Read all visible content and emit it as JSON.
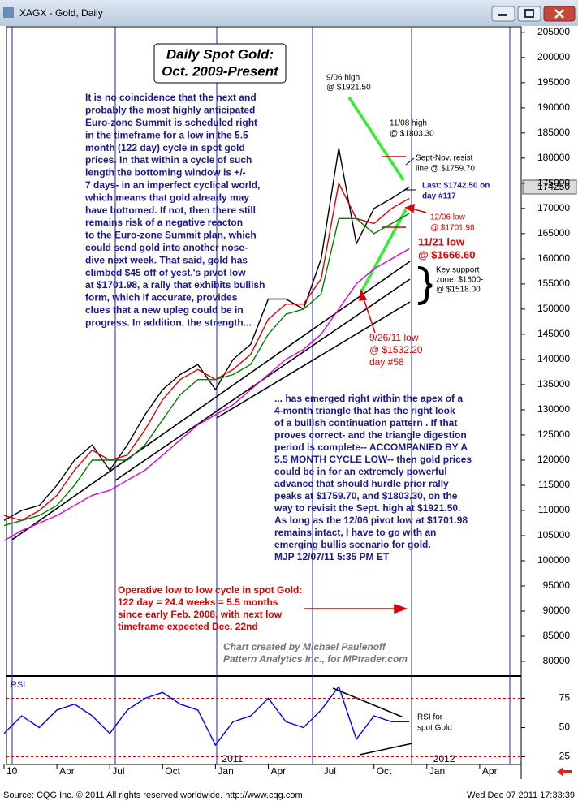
{
  "window": {
    "title": "XAGX - Gold, Daily"
  },
  "chart_data": [
    {
      "type": "line",
      "title": [
        "Daily Spot Gold:",
        "Oct. 2009-Present"
      ],
      "ylim": [
        77100,
        206100
      ],
      "yticks": [
        80000,
        85000,
        90000,
        95000,
        100000,
        105000,
        110000,
        115000,
        120000,
        125000,
        130000,
        135000,
        140000,
        145000,
        150000,
        155000,
        160000,
        165000,
        170000,
        175000,
        180000,
        185000,
        190000,
        195000,
        200000,
        205000
      ],
      "last_label": 174250,
      "series": [
        {
          "color": "#000000",
          "values": [
            108000,
            110000,
            111000,
            115000,
            120000,
            123000,
            118000,
            123000,
            129000,
            134000,
            137000,
            139000,
            134000,
            140000,
            143000,
            152000,
            152000,
            150000,
            160000,
            182000,
            163000,
            170000,
            172000,
            174250,
            null,
            null,
            null,
            null
          ]
        },
        {
          "color": "#dd0000",
          "values": [
            109000,
            108000,
            110000,
            113000,
            118000,
            122000,
            120000,
            121000,
            126000,
            132000,
            136000,
            138000,
            136000,
            138000,
            141000,
            148000,
            151000,
            151000,
            156000,
            175000,
            168000,
            167000,
            170000,
            172000,
            null,
            null,
            null,
            null
          ]
        },
        {
          "color": "#008000",
          "values": [
            107000,
            108000,
            109000,
            111000,
            115000,
            120000,
            120000,
            120000,
            123000,
            128000,
            133000,
            136000,
            136000,
            137000,
            139000,
            145000,
            149000,
            150000,
            153000,
            168000,
            168000,
            165000,
            167000,
            169000,
            null,
            null,
            null,
            null
          ]
        },
        {
          "color": "#dd00dd",
          "values": [
            104000,
            106000,
            107500,
            109000,
            111000,
            113000,
            114000,
            116000,
            118000,
            121000,
            124000,
            127000,
            129000,
            131000,
            134000,
            137000,
            140000,
            142000,
            145000,
            150000,
            155000,
            158000,
            160000,
            162000,
            null,
            null,
            null,
            null
          ]
        }
      ],
      "annotations": [
        {
          "lines": [
            "It is no coincidence that the next and",
            "probably the most highly anticipated",
            "Euro-zone Summit is scheduled right",
            "in the timeframe for a low in the 5.5",
            "month (122 day) cycle in spot gold",
            "prices. In that within a cycle of such",
            "length the bottoming window is +/-",
            "7 days- in an imperfect cyclical world,",
            "which means that gold already may",
            "have bottomed. If not, then there still",
            "remains risk of a negative reacton",
            "to the Euro-zone Summit plan, which",
            "could send gold into another nose-",
            "dive next week. That said, gold has",
            "climbed $45 off of yest.'s pivot low",
            "at $1701.98, a rally that exhibits bullish",
            "form, which if accurate, provides",
            "clues that a new upleg could be in",
            "progress.  In addition, the strength..."
          ]
        },
        {
          "lines": [
            "... has emerged right within the apex of a",
            "4-month triangle that has the right look",
            "of a bullish continuation pattern . If that",
            "proves correct- and the triangle digestion",
            "period is complete-- ACCOMPANIED BY A",
            "5.5 MONTH CYCLE LOW-- then gold prices",
            "could be in for an extremely powerful",
            "advance that should hurdle prior rally",
            "peaks at $1759.70, and $1803.30, on the",
            "way to revisit the Sept. high at $1921.50.",
            "As long as the 12/06 pivot low at $1701.98",
            "remains intact, I have to go with an",
            "emerging bullis scenario for gold.",
            "MJP 12/07/11 5:35 PM ET"
          ]
        },
        {
          "lines": [
            "Operative low to low cycle in spot Gold:",
            "122 day = 24.4 weeks = 5.5 months",
            "since early Feb. 2008, with next low",
            "timeframe expected Dec. 22nd"
          ]
        },
        {
          "lines": [
            "Chart created by Michael Paulenoff",
            "Pattern Analytics Inc., for MPtrader.com"
          ]
        },
        {
          "lines": [
            "9/06 high",
            "@ $1921.50"
          ]
        },
        {
          "lines": [
            "11/08 high",
            "@ $1803.30"
          ]
        },
        {
          "lines": [
            "Sept-Nov. resist",
            "line @ $1759.70"
          ]
        },
        {
          "lines": [
            "Last: $1742.50 on",
            "day #117"
          ]
        },
        {
          "lines": [
            "12/06 low",
            "@ $1701.98"
          ]
        },
        {
          "lines": [
            "11/21 low",
            "@ $1666.60"
          ]
        },
        {
          "lines": [
            "Key support",
            "zone: $1600-",
            "@ $1518.00"
          ]
        },
        {
          "lines": [
            "9/26/11 low",
            "@ $1532.20",
            "day #58"
          ]
        }
      ]
    },
    {
      "type": "line",
      "label": "RSI",
      "categories": [
        "10",
        null,
        null,
        "Apr",
        null,
        null,
        "Jul",
        null,
        null,
        "Oct",
        null,
        null,
        "Jan",
        null,
        null,
        "Apr",
        null,
        null,
        "Jul",
        null,
        null,
        "Oct",
        null,
        null,
        "Jan",
        null,
        null,
        "Apr"
      ],
      "year_labels": [
        "2011",
        "2012"
      ],
      "ylim": [
        18,
        92
      ],
      "yticks": [
        25,
        50,
        75
      ],
      "ref_lines": [
        75,
        25
      ],
      "series": [
        {
          "color": "#0000ff",
          "values": [
            45,
            60,
            50,
            65,
            70,
            60,
            45,
            65,
            75,
            80,
            70,
            65,
            35,
            55,
            60,
            75,
            55,
            50,
            65,
            85,
            40,
            60,
            55,
            55,
            null,
            null,
            null,
            null
          ]
        }
      ],
      "annotations": [
        {
          "lines": [
            "RSI for",
            "spot Gold"
          ]
        }
      ]
    }
  ],
  "footer": {
    "left": "Source: CQG Inc. © 2011 All rights reserved worldwide. http://www.cqg.com",
    "right": "Wed Dec 07 2011 17:33:39"
  }
}
